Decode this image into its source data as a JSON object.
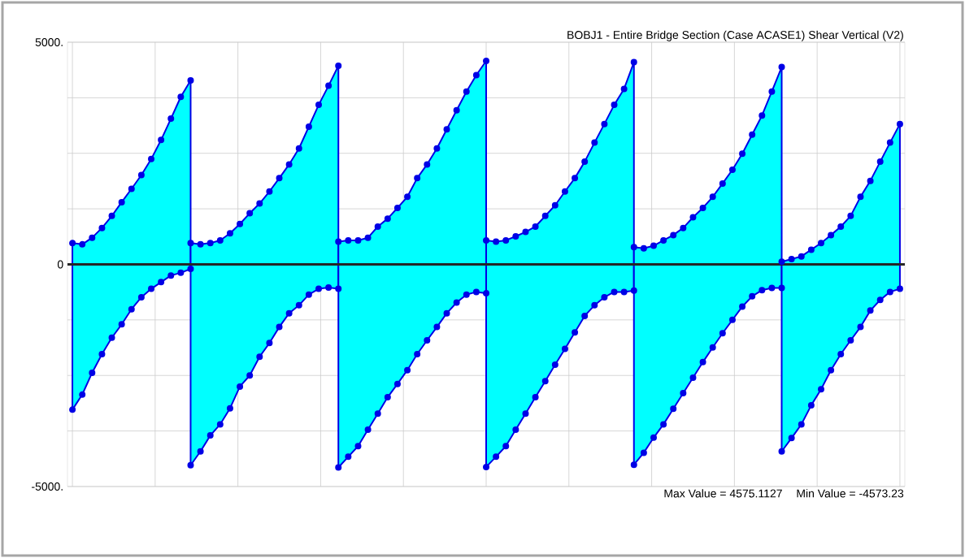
{
  "chart_data": {
    "type": "area",
    "title": "BOBJ1 - Entire Bridge Section  (Case ACASE1)  Shear Vertical  (V2)",
    "annotations": [
      "Max Value = 4575.1127",
      "Min Value = -4573.23"
    ],
    "categories": [
      null,
      null,
      null,
      null,
      null,
      null,
      null,
      null,
      null,
      null,
      null,
      null,
      null,
      null,
      null,
      null,
      null,
      null,
      null,
      null,
      null,
      null,
      null,
      null,
      null,
      null,
      null,
      null,
      null,
      null,
      null,
      null,
      null,
      null,
      null,
      null,
      null,
      null,
      null,
      null,
      null,
      null,
      null,
      null,
      null,
      null,
      null,
      null,
      null,
      null,
      null,
      null,
      null,
      null,
      null,
      null,
      null,
      null,
      null,
      null,
      null,
      null,
      null,
      null,
      null,
      null,
      null,
      null,
      null,
      null,
      null,
      null,
      null,
      null,
      null,
      null,
      null,
      null,
      null,
      null,
      null,
      null,
      null,
      null,
      null
    ],
    "ylim": [
      -5000,
      5000
    ],
    "yticks": [
      {
        "value": -5000,
        "label": "-5000."
      },
      {
        "value": -3750,
        "label": null
      },
      {
        "value": -2500,
        "label": null
      },
      {
        "value": -1250,
        "label": null
      },
      0,
      {
        "value": 1250,
        "label": null
      },
      {
        "value": 2500,
        "label": null
      },
      {
        "value": 3750,
        "label": null
      },
      {
        "value": 5000,
        "label": "5000."
      }
    ],
    "tick_labels": "y",
    "grid": true,
    "marker": "circle",
    "line_style": "solid",
    "series": [
      {
        "color": "#00ffff",
        "values": [
          480,
          450,
          600,
          820,
          1090,
          1400,
          1700,
          2010,
          2370,
          2800,
          3280,
          3770,
          4140,
          null,
          null,
          null,
          null,
          null,
          null,
          null,
          null,
          null,
          null,
          null,
          null,
          null,
          null,
          null,
          null,
          null,
          null,
          null,
          null,
          null,
          null,
          null,
          null,
          null,
          null,
          null,
          null,
          null,
          null,
          null,
          null,
          null,
          null,
          null,
          null,
          null,
          null,
          null,
          null,
          null,
          null,
          null,
          null,
          null,
          null,
          null,
          null,
          null,
          null,
          null,
          null,
          null,
          null,
          null,
          null,
          null,
          null,
          null,
          null,
          null,
          null,
          null,
          null,
          null,
          null,
          null,
          null,
          null,
          null,
          null,
          null
        ]
      },
      {
        "color": "#00ffff",
        "values": [
          null,
          null,
          null,
          null,
          null,
          null,
          null,
          null,
          null,
          null,
          null,
          null,
          480,
          450,
          480,
          540,
          700,
          910,
          1150,
          1370,
          1640,
          1940,
          2250,
          2610,
          3100,
          3590,
          4020,
          4470,
          null,
          null,
          null,
          null,
          null,
          null,
          null,
          null,
          null,
          null,
          null,
          null,
          null,
          null,
          null,
          null,
          null,
          null,
          null,
          null,
          null,
          null,
          null,
          null,
          null,
          null,
          null,
          null,
          null,
          null,
          null,
          null,
          null,
          null,
          null,
          null,
          null,
          null,
          null,
          null,
          null,
          null,
          null,
          null,
          null,
          null,
          null,
          null,
          null,
          null,
          null,
          null,
          null,
          null,
          null,
          null,
          null
        ]
      },
      {
        "color": "#00ffff",
        "values": [
          null,
          null,
          null,
          null,
          null,
          null,
          null,
          null,
          null,
          null,
          null,
          null,
          null,
          null,
          null,
          null,
          null,
          null,
          null,
          null,
          null,
          null,
          null,
          null,
          null,
          null,
          null,
          510,
          540,
          540,
          600,
          850,
          1030,
          1270,
          1520,
          1940,
          2250,
          2610,
          3040,
          3470,
          3890,
          4260,
          4580,
          null,
          null,
          null,
          null,
          null,
          null,
          null,
          null,
          null,
          null,
          null,
          null,
          null,
          null,
          null,
          null,
          null,
          null,
          null,
          null,
          null,
          null,
          null,
          null,
          null,
          null,
          null,
          null,
          null,
          null,
          null,
          null,
          null,
          null,
          null,
          null,
          null,
          null,
          null,
          null,
          null,
          null
        ]
      },
      {
        "color": "#00ffff",
        "values": [
          null,
          null,
          null,
          null,
          null,
          null,
          null,
          null,
          null,
          null,
          null,
          null,
          null,
          null,
          null,
          null,
          null,
          null,
          null,
          null,
          null,
          null,
          null,
          null,
          null,
          null,
          null,
          null,
          null,
          null,
          null,
          null,
          null,
          null,
          null,
          null,
          null,
          null,
          null,
          null,
          null,
          null,
          540,
          510,
          540,
          630,
          730,
          850,
          1090,
          1330,
          1640,
          1940,
          2310,
          2740,
          3160,
          3590,
          3950,
          4550,
          null,
          null,
          null,
          null,
          null,
          null,
          null,
          null,
          null,
          null,
          null,
          null,
          null,
          null,
          null,
          null,
          null,
          null,
          null,
          null,
          null,
          null,
          null,
          null,
          null,
          null,
          null
        ]
      },
      {
        "color": "#00ffff",
        "values": [
          null,
          null,
          null,
          null,
          null,
          null,
          null,
          null,
          null,
          null,
          null,
          null,
          null,
          null,
          null,
          null,
          null,
          null,
          null,
          null,
          null,
          null,
          null,
          null,
          null,
          null,
          null,
          null,
          null,
          null,
          null,
          null,
          null,
          null,
          null,
          null,
          null,
          null,
          null,
          null,
          null,
          null,
          null,
          null,
          null,
          null,
          null,
          null,
          null,
          null,
          null,
          null,
          null,
          null,
          null,
          null,
          null,
          390,
          360,
          420,
          540,
          660,
          820,
          1060,
          1270,
          1520,
          1820,
          2130,
          2490,
          2920,
          3350,
          3890,
          4440,
          null,
          null,
          null,
          null,
          null,
          null,
          null,
          null,
          null,
          null,
          null,
          null
        ]
      },
      {
        "color": "#00ffff",
        "values": [
          null,
          null,
          null,
          null,
          null,
          null,
          null,
          null,
          null,
          null,
          null,
          null,
          null,
          null,
          null,
          null,
          null,
          null,
          null,
          null,
          null,
          null,
          null,
          null,
          null,
          null,
          null,
          null,
          null,
          null,
          null,
          null,
          null,
          null,
          null,
          null,
          null,
          null,
          null,
          null,
          null,
          null,
          null,
          null,
          null,
          null,
          null,
          null,
          null,
          null,
          null,
          null,
          null,
          null,
          null,
          null,
          null,
          null,
          null,
          null,
          null,
          null,
          null,
          null,
          null,
          null,
          null,
          null,
          null,
          null,
          null,
          null,
          60,
          120,
          180,
          330,
          480,
          660,
          850,
          1090,
          1520,
          1880,
          2310,
          2740,
          3160
        ]
      },
      {
        "color": "#00ffff",
        "values": [
          -3270,
          -2930,
          -2440,
          -2020,
          -1650,
          -1350,
          -1010,
          -740,
          -550,
          -400,
          -250,
          -190,
          -100,
          null,
          null,
          null,
          null,
          null,
          null,
          null,
          null,
          null,
          null,
          null,
          null,
          null,
          null,
          null,
          null,
          null,
          null,
          null,
          null,
          null,
          null,
          null,
          null,
          null,
          null,
          null,
          null,
          null,
          null,
          null,
          null,
          null,
          null,
          null,
          null,
          null,
          null,
          null,
          null,
          null,
          null,
          null,
          null,
          null,
          null,
          null,
          null,
          null,
          null,
          null,
          null,
          null,
          null,
          null,
          null,
          null,
          null,
          null,
          null,
          null,
          null,
          null,
          null,
          null,
          null,
          null,
          null,
          null,
          null,
          null,
          null
        ]
      },
      {
        "color": "#00ffff",
        "values": [
          null,
          null,
          null,
          null,
          null,
          null,
          null,
          null,
          null,
          null,
          null,
          null,
          -4520,
          -4210,
          -3850,
          -3600,
          -3240,
          -2750,
          -2500,
          -2080,
          -1770,
          -1410,
          -1100,
          -920,
          -680,
          -550,
          -520,
          -550,
          null,
          null,
          null,
          null,
          null,
          null,
          null,
          null,
          null,
          null,
          null,
          null,
          null,
          null,
          null,
          null,
          null,
          null,
          null,
          null,
          null,
          null,
          null,
          null,
          null,
          null,
          null,
          null,
          null,
          null,
          null,
          null,
          null,
          null,
          null,
          null,
          null,
          null,
          null,
          null,
          null,
          null,
          null,
          null,
          null,
          null,
          null,
          null,
          null,
          null,
          null,
          null,
          null,
          null,
          null,
          null,
          null
        ]
      },
      {
        "color": "#00ffff",
        "values": [
          null,
          null,
          null,
          null,
          null,
          null,
          null,
          null,
          null,
          null,
          null,
          null,
          null,
          null,
          null,
          null,
          null,
          null,
          null,
          null,
          null,
          null,
          null,
          null,
          null,
          null,
          null,
          -4570,
          -4330,
          -4090,
          -3720,
          -3360,
          -2990,
          -2690,
          -2380,
          -2020,
          -1710,
          -1410,
          -1100,
          -860,
          -680,
          -620,
          -650,
          null,
          null,
          null,
          null,
          null,
          null,
          null,
          null,
          null,
          null,
          null,
          null,
          null,
          null,
          null,
          null,
          null,
          null,
          null,
          null,
          null,
          null,
          null,
          null,
          null,
          null,
          null,
          null,
          null,
          null,
          null,
          null,
          null,
          null,
          null,
          null,
          null,
          null,
          null,
          null,
          null,
          null
        ]
      },
      {
        "color": "#00ffff",
        "values": [
          null,
          null,
          null,
          null,
          null,
          null,
          null,
          null,
          null,
          null,
          null,
          null,
          null,
          null,
          null,
          null,
          null,
          null,
          null,
          null,
          null,
          null,
          null,
          null,
          null,
          null,
          null,
          null,
          null,
          null,
          null,
          null,
          null,
          null,
          null,
          null,
          null,
          null,
          null,
          null,
          null,
          null,
          -4560,
          -4330,
          -4090,
          -3720,
          -3360,
          -2990,
          -2630,
          -2260,
          -1900,
          -1530,
          -1160,
          -920,
          -740,
          -620,
          -620,
          -590,
          null,
          null,
          null,
          null,
          null,
          null,
          null,
          null,
          null,
          null,
          null,
          null,
          null,
          null,
          null,
          null,
          null,
          null,
          null,
          null,
          null,
          null,
          null,
          null,
          null,
          null,
          null
        ]
      },
      {
        "color": "#00ffff",
        "values": [
          null,
          null,
          null,
          null,
          null,
          null,
          null,
          null,
          null,
          null,
          null,
          null,
          null,
          null,
          null,
          null,
          null,
          null,
          null,
          null,
          null,
          null,
          null,
          null,
          null,
          null,
          null,
          null,
          null,
          null,
          null,
          null,
          null,
          null,
          null,
          null,
          null,
          null,
          null,
          null,
          null,
          null,
          null,
          null,
          null,
          null,
          null,
          null,
          null,
          null,
          null,
          null,
          null,
          null,
          null,
          null,
          null,
          -4510,
          -4240,
          -3900,
          -3600,
          -3250,
          -2900,
          -2550,
          -2200,
          -1870,
          -1550,
          -1250,
          -950,
          -720,
          -580,
          -530,
          -530,
          null,
          null,
          null,
          null,
          null,
          null,
          null,
          null,
          null,
          null,
          null,
          null
        ]
      },
      {
        "color": "#00ffff",
        "values": [
          null,
          null,
          null,
          null,
          null,
          null,
          null,
          null,
          null,
          null,
          null,
          null,
          null,
          null,
          null,
          null,
          null,
          null,
          null,
          null,
          null,
          null,
          null,
          null,
          null,
          null,
          null,
          null,
          null,
          null,
          null,
          null,
          null,
          null,
          null,
          null,
          null,
          null,
          null,
          null,
          null,
          null,
          null,
          null,
          null,
          null,
          null,
          null,
          null,
          null,
          null,
          null,
          null,
          null,
          null,
          null,
          null,
          null,
          null,
          null,
          null,
          null,
          null,
          null,
          null,
          null,
          null,
          null,
          null,
          null,
          null,
          null,
          -4210,
          -3910,
          -3600,
          -3170,
          -2810,
          -2380,
          -2020,
          -1710,
          -1410,
          -1040,
          -800,
          -620,
          -550
        ]
      }
    ]
  }
}
